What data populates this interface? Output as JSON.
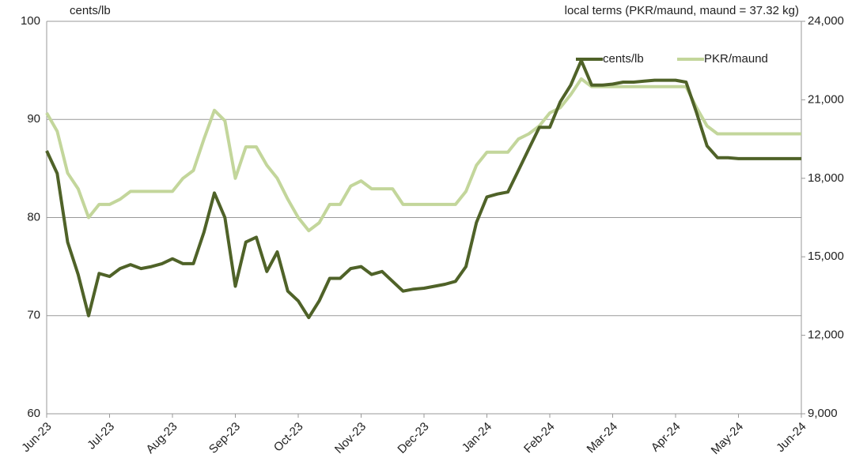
{
  "chart_data": {
    "type": "line",
    "y_label": "cents/lb",
    "y2_label": "local terms (PKR/maund, maund = 37.32 kg)",
    "categories": [
      "Jun-23",
      null,
      null,
      null,
      null,
      null,
      "Jul-23",
      null,
      null,
      null,
      null,
      null,
      "Aug-23",
      null,
      null,
      null,
      null,
      null,
      "Sep-23",
      null,
      null,
      null,
      null,
      null,
      "Oct-23",
      null,
      null,
      null,
      null,
      null,
      "Nov-23",
      null,
      null,
      null,
      null,
      null,
      "Dec-23",
      null,
      null,
      null,
      null,
      null,
      "Jan-24",
      null,
      null,
      null,
      null,
      null,
      "Feb-24",
      null,
      null,
      null,
      null,
      null,
      "Mar-24",
      null,
      null,
      null,
      null,
      null,
      "Apr-24",
      null,
      null,
      null,
      null,
      null,
      "May-24",
      null,
      null,
      null,
      null,
      null,
      "Jun-24"
    ],
    "series": [
      {
        "name": "cents/lb",
        "color": "#4f6228",
        "values": [
          86.8,
          84.5,
          77.5,
          74.2,
          70,
          74.3,
          74,
          74.8,
          75.2,
          74.8,
          75,
          75.3,
          75.8,
          75.3,
          75.3,
          78.5,
          82.5,
          80,
          73,
          77.5,
          78,
          74.5,
          76.5,
          72.5,
          71.5,
          69.8,
          71.5,
          73.8,
          73.8,
          74.8,
          75,
          74.2,
          74.5,
          73.5,
          72.5,
          72.7,
          72.8,
          73,
          73.2,
          73.5,
          75,
          79.5,
          82.1,
          82.4,
          82.6,
          84.8,
          87,
          89.2,
          89.2,
          91.8,
          93.5,
          96,
          93.5,
          93.5,
          93.6,
          93.8,
          93.8,
          93.9,
          94,
          94,
          94,
          93.8,
          90.7,
          87.3,
          86.1,
          86.1,
          86,
          86,
          86,
          86,
          86,
          86,
          86
        ]
      },
      {
        "name": "PKR/maund",
        "color": "#c3d69b",
        "axis": "y2",
        "values": [
          20500,
          19800,
          18200,
          17600,
          16500,
          17000,
          17000,
          17200,
          17500,
          17500,
          17500,
          17500,
          17500,
          18000,
          18300,
          19500,
          20600,
          20200,
          18000,
          19200,
          19200,
          18500,
          18000,
          17200,
          16500,
          16000,
          16300,
          17000,
          17000,
          17700,
          17900,
          17600,
          17600,
          17600,
          17000,
          17000,
          17000,
          17000,
          17000,
          17000,
          17500,
          18500,
          19000,
          19000,
          19000,
          19500,
          19700,
          20000,
          20500,
          20700,
          21200,
          21800,
          21500,
          21500,
          21500,
          21500,
          21500,
          21500,
          21500,
          21500,
          21500,
          21500,
          20700,
          20000,
          19700,
          19700,
          19700,
          19700,
          19700,
          19700,
          19700,
          19700,
          19700
        ]
      }
    ],
    "ylim": [
      60,
      100
    ],
    "yticks": [
      60,
      70,
      80,
      90,
      100
    ],
    "y2lim": [
      9000,
      24000
    ],
    "y2ticks": [
      {
        "value": 9000,
        "label": "9,000"
      },
      {
        "value": 12000,
        "label": "12,000"
      },
      {
        "value": 15000,
        "label": "15,000"
      },
      {
        "value": 18000,
        "label": "18,000"
      },
      {
        "value": 21000,
        "label": "21,000"
      },
      {
        "value": 24000,
        "label": "24,000"
      }
    ],
    "grid": true,
    "legend": "top-right"
  }
}
